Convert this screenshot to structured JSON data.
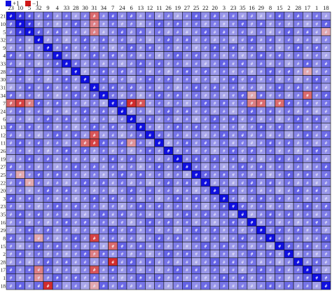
{
  "legend": {
    "positive_label": "+1",
    "negative_label": "−1",
    "positive_color": "#1010e0",
    "negative_color": "#d01818"
  },
  "chart_data": {
    "type": "heatmap",
    "title": "",
    "xlabel": "",
    "ylabel": "",
    "x_categories": [
      "23",
      "10",
      "5",
      "32",
      "9",
      "4",
      "33",
      "28",
      "30",
      "31",
      "34",
      "7",
      "24",
      "6",
      "13",
      "12",
      "11",
      "26",
      "19",
      "27",
      "25",
      "22",
      "20",
      "3",
      "23",
      "35",
      "16",
      "29",
      "8",
      "15",
      "2",
      "28",
      "17",
      "1",
      "18"
    ],
    "y_categories": [
      "21",
      "10",
      "5",
      "32",
      "9",
      "4",
      "33",
      "28",
      "30",
      "31",
      "34",
      "7",
      "24",
      "6",
      "13",
      "12",
      "11",
      "26",
      "19",
      "27",
      "25",
      "22",
      "20",
      "3",
      "23",
      "35",
      "16",
      "29",
      "8",
      "15",
      "2",
      "28",
      "17",
      "1",
      "18"
    ],
    "value_range": [
      -1,
      1
    ],
    "color_scale": {
      "min_color": "#d01818",
      "mid_color": "#e8e4f0",
      "max_color": "#1010e0"
    },
    "cell_marker": "#",
    "diagonal_value": 1,
    "default_value": 0.45,
    "notable_values": [
      {
        "row": 0,
        "col": 9,
        "value": -0.6
      },
      {
        "row": 1,
        "col": 9,
        "value": -0.5
      },
      {
        "row": 2,
        "col": 9,
        "value": -0.5
      },
      {
        "row": 11,
        "col": 0,
        "value": -0.6
      },
      {
        "row": 11,
        "col": 1,
        "value": -0.8
      },
      {
        "row": 11,
        "col": 2,
        "value": -0.5
      },
      {
        "row": 11,
        "col": 13,
        "value": -0.9
      },
      {
        "row": 11,
        "col": 14,
        "value": -0.7
      },
      {
        "row": 11,
        "col": 26,
        "value": -0.5
      },
      {
        "row": 11,
        "col": 27,
        "value": -0.6
      },
      {
        "row": 11,
        "col": 29,
        "value": -0.6
      },
      {
        "row": 10,
        "col": 32,
        "value": -0.6
      },
      {
        "row": 10,
        "col": 35,
        "value": -0.4
      },
      {
        "row": 10,
        "col": 26,
        "value": -0.3
      },
      {
        "row": 7,
        "col": 32,
        "value": -0.3
      },
      {
        "row": 15,
        "col": 9,
        "value": -0.7
      },
      {
        "row": 16,
        "col": 8,
        "value": -0.6
      },
      {
        "row": 16,
        "col": 9,
        "value": -0.8
      },
      {
        "row": 16,
        "col": 13,
        "value": -0.4
      },
      {
        "row": 21,
        "col": 2,
        "value": -0.3
      },
      {
        "row": 28,
        "col": 3,
        "value": -0.3
      },
      {
        "row": 28,
        "col": 9,
        "value": -0.8
      },
      {
        "row": 29,
        "col": 11,
        "value": -0.6
      },
      {
        "row": 30,
        "col": 9,
        "value": -0.5
      },
      {
        "row": 31,
        "col": 11,
        "value": -0.9
      },
      {
        "row": 32,
        "col": 9,
        "value": -0.7
      },
      {
        "row": 32,
        "col": 3,
        "value": -0.5
      },
      {
        "row": 33,
        "col": 3,
        "value": -0.4
      },
      {
        "row": 34,
        "col": 4,
        "value": -0.9
      },
      {
        "row": 34,
        "col": 9,
        "value": -0.3
      },
      {
        "row": 20,
        "col": 1,
        "value": -0.3
      },
      {
        "row": 2,
        "col": 34,
        "value": -0.3
      },
      {
        "row": 1,
        "col": 1,
        "value": 1
      },
      {
        "row": 2,
        "col": 2,
        "value": 1
      },
      {
        "row": 0,
        "col": 1,
        "value": 0.8
      },
      {
        "row": 1,
        "col": 2,
        "value": 0.8
      },
      {
        "row": 2,
        "col": 1,
        "value": 0.8
      }
    ]
  }
}
